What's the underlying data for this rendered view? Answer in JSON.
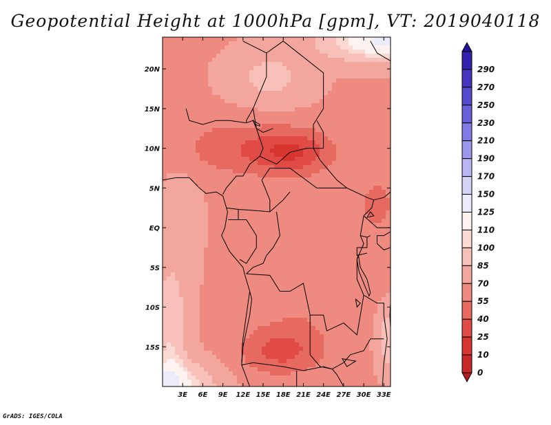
{
  "title": "Geopotential Height at 1000hPa [gpm], VT: 2019040118",
  "credit": "GrADS: IGES/COLA",
  "colors": {
    "levels": [
      "#b21e22",
      "#c8282a",
      "#d6362f",
      "#e04c45",
      "#e76a60",
      "#ee8a80",
      "#f2a69d",
      "#f7c0b9",
      "#fbdad4",
      "#fff3f1",
      "#ebebfb",
      "#d3d3f6",
      "#b9b6f2",
      "#9d97ec",
      "#8279e4",
      "#6b60db",
      "#5749cd",
      "#4535be",
      "#3322ae",
      "#23149a"
    ],
    "frame": "#000000",
    "border": "#000000"
  },
  "chart_data": {
    "type": "heatmap",
    "title": "Geopotential Height at 1000hPa [gpm], VT: 2019040118",
    "variable": "Geopotential Height",
    "units": "gpm",
    "level": "1000hPa",
    "valid_time": "2019040118",
    "xlim": [
      0,
      34
    ],
    "ylim": [
      -20,
      24
    ],
    "x_tick_labels": [
      "3E",
      "6E",
      "9E",
      "12E",
      "15E",
      "18E",
      "21E",
      "24E",
      "27E",
      "30E",
      "33E"
    ],
    "x_tick_values": [
      3,
      6,
      9,
      12,
      15,
      18,
      21,
      24,
      27,
      30,
      33
    ],
    "y_tick_labels": [
      "20N",
      "15N",
      "10N",
      "5N",
      "EQ",
      "5S",
      "10S",
      "15S"
    ],
    "y_tick_values": [
      20,
      15,
      10,
      5,
      0,
      -5,
      -10,
      -15
    ],
    "colorbar_labels": [
      "290",
      "270",
      "250",
      "230",
      "210",
      "190",
      "170",
      "150",
      "125",
      "110",
      "100",
      "85",
      "70",
      "55",
      "40",
      "25",
      "10",
      "0"
    ],
    "colorbar_values": [
      290,
      270,
      250,
      230,
      210,
      190,
      170,
      150,
      125,
      110,
      100,
      85,
      70,
      55,
      40,
      25,
      10,
      0
    ],
    "field_summary": {
      "min_region": "around 18E-21E, 8N-11N and 15E-22E, 14S-17S",
      "max_region": "southwest corner near 0E-6E, 20S and northeast corner near 24E-34E, 20N-24N"
    }
  }
}
